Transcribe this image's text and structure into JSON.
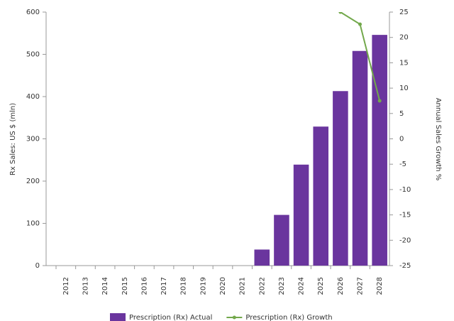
{
  "chart_data": {
    "type": "bar",
    "categories": [
      "2012",
      "2013",
      "2014",
      "2015",
      "2016",
      "2017",
      "2018",
      "2019",
      "2020",
      "2021",
      "2022",
      "2023",
      "2024",
      "2025",
      "2026",
      "2027",
      "2028"
    ],
    "y_label": "Rx Sales: US $ (mln)",
    "y2_label": "Annual Sales Growth %",
    "ylim": [
      0,
      600
    ],
    "yticks": [
      0,
      100,
      200,
      300,
      400,
      500,
      600
    ],
    "y2lim": [
      -25,
      25
    ],
    "y2ticks": [
      -25,
      -20,
      -15,
      -10,
      -5,
      0,
      5,
      10,
      15,
      20,
      25
    ],
    "series": [
      {
        "name": "Prescription (Rx) Actual",
        "type": "bar",
        "color": "#6a359e",
        "values": [
          null,
          null,
          null,
          null,
          null,
          null,
          null,
          null,
          null,
          null,
          38,
          120,
          239,
          329,
          413,
          508,
          546
        ]
      },
      {
        "name": "Prescription (Rx) Growth",
        "type": "line",
        "axis": "y2",
        "color": "#72a84b",
        "values": [
          null,
          null,
          null,
          null,
          null,
          null,
          null,
          null,
          null,
          null,
          null,
          null,
          null,
          null,
          25,
          22.6,
          7.5
        ]
      }
    ]
  }
}
